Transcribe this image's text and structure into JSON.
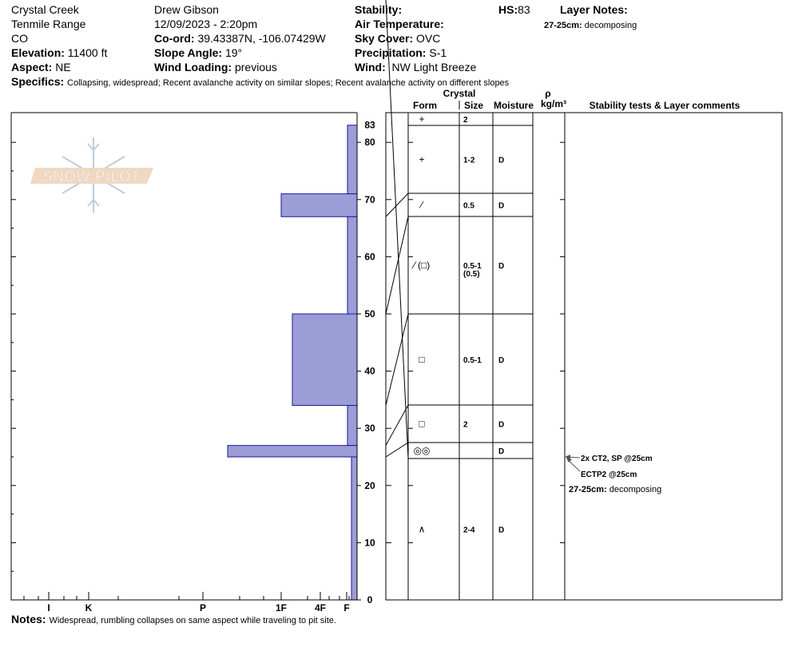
{
  "header": {
    "location": "Crystal Creek",
    "range": "Tenmile Range",
    "state": "CO",
    "elevation_label": "Elevation:",
    "elevation": "11400 ft",
    "aspect_label": "Aspect:",
    "aspect": "NE",
    "observer": "Drew Gibson",
    "datetime": "12/09/2023 - 2:20pm",
    "coord_label": "Co-ord:",
    "coord": "39.43387N, -106.07429W",
    "slope_label": "Slope Angle:",
    "slope": "19°",
    "wind_loading_label": "Wind Loading:",
    "wind_loading": "previous",
    "stability_label": "Stability:",
    "air_temp_label": "Air Temperature:",
    "sky_label": "Sky Cover:",
    "sky": "OVC",
    "precip_label": "Precipitation:",
    "precip": "S-1",
    "wind_label": "Wind:",
    "wind": "NW Light Breeze",
    "hs_label": "HS:",
    "hs": "83",
    "layer_notes_label": "Layer Notes:",
    "layer_notes": [
      {
        "range": "27-25cm:",
        "text": "decomposing"
      }
    ],
    "specifics_label": "Specifics:",
    "specifics": "Collapsing, widespread;  Recent avalanche activity on similar slopes;  Recent avalanche activity on different slopes"
  },
  "logo": {
    "text": "SNOW PILOT"
  },
  "profile": {
    "height_ticks": [
      "0",
      "10",
      "20",
      "30",
      "40",
      "50",
      "60",
      "70",
      "80"
    ],
    "hs_tick": "83",
    "hardness_labels": [
      "I",
      "K",
      "P",
      "1F",
      "4F",
      "F"
    ],
    "layers": [
      {
        "top": 83,
        "bottom": 71,
        "hardness": "F"
      },
      {
        "top": 71,
        "bottom": 67,
        "hardness": "1F"
      },
      {
        "top": 67,
        "bottom": 50,
        "hardness": "F"
      },
      {
        "top": 50,
        "bottom": 34,
        "hardness": "1F-"
      },
      {
        "top": 34,
        "bottom": 27,
        "hardness": "F"
      },
      {
        "top": 27,
        "bottom": 25,
        "hardness": "P-"
      },
      {
        "top": 25,
        "bottom": 0,
        "hardness": "F-"
      }
    ],
    "bar_color": "#9c9cd6"
  },
  "table": {
    "headers": {
      "crystal": "Crystal",
      "form": "Form",
      "size": "Size",
      "moisture": "Moisture",
      "rho": "ρ",
      "density": "kg/m³",
      "comments": "Stability tests & Layer comments"
    },
    "rows": [
      {
        "form": "+",
        "size": "2",
        "size2": "",
        "moisture": ""
      },
      {
        "form": "+",
        "size": "1-2",
        "size2": "",
        "moisture": "D"
      },
      {
        "form": "⁄",
        "size": "0.5",
        "size2": "",
        "moisture": "D"
      },
      {
        "form": "⁄ (□)",
        "size": "0.5-1",
        "size2": "(0.5)",
        "moisture": "D"
      },
      {
        "form": "□",
        "size": "0.5-1",
        "size2": "",
        "moisture": "D"
      },
      {
        "form": "□",
        "size": "2",
        "size2": "",
        "moisture": "D"
      },
      {
        "form": "◎◎",
        "size": "",
        "size2": "",
        "moisture": "D"
      },
      {
        "form": "∧",
        "size": "2-4",
        "size2": "",
        "moisture": "D"
      }
    ],
    "tests": [
      "2x CT2, SP @25cm",
      "ECTP2 @25cm"
    ],
    "comment": {
      "range": "27-25cm:",
      "text": "decomposing"
    }
  },
  "notes": {
    "label": "Notes:",
    "text": "Widespread, rumbling collapses on same aspect while traveling to pit site."
  }
}
